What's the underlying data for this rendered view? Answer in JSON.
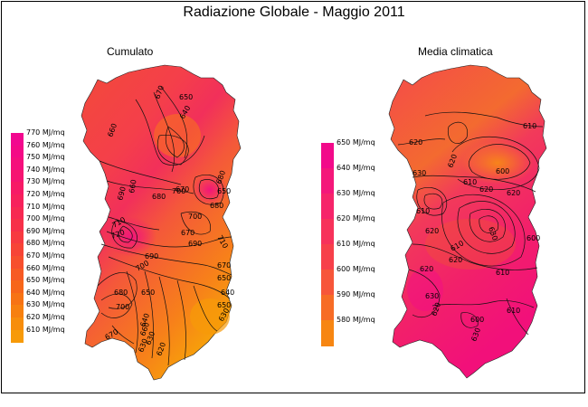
{
  "title": "Radiazione Globale - Maggio 2011",
  "left_panel": {
    "subtitle": "Cumulato",
    "legend": {
      "labels": [
        "770 MJ/mq",
        "760 MJ/mq",
        "750 MJ/mq",
        "740 MJ/mq",
        "730 MJ/mq",
        "720 MJ/mq",
        "710 MJ/mq",
        "700 MJ/mq",
        "690 MJ/mq",
        "680 MJ/mq",
        "670 MJ/mq",
        "660 MJ/mq",
        "650 MJ/mq",
        "640 MJ/mq",
        "630 MJ/mq",
        "620 MJ/mq",
        "610 MJ/mq"
      ],
      "colors": [
        "#f2088f",
        "#f40a86",
        "#f50f7c",
        "#f61471",
        "#f71a66",
        "#f7215c",
        "#f72952",
        "#f73049",
        "#f73a40",
        "#f74436",
        "#f74f2d",
        "#f75a24",
        "#f7661a",
        "#f77314",
        "#f7800f",
        "#f78d0c",
        "#f79a08"
      ]
    },
    "contour_labels": [
      "670",
      "640",
      "660",
      "650",
      "650",
      "680",
      "700",
      "710",
      "690",
      "720",
      "680",
      "700",
      "680",
      "670",
      "660",
      "670",
      "690",
      "710",
      "690",
      "700",
      "650",
      "640",
      "670",
      "650",
      "630",
      "680",
      "650",
      "700",
      "640",
      "630",
      "670",
      "620",
      "660",
      "630"
    ]
  },
  "right_panel": {
    "subtitle": "Media climatica",
    "legend": {
      "labels": [
        "650 MJ/mq",
        "640 MJ/mq",
        "630 MJ/mq",
        "620 MJ/mq",
        "610 MJ/mq",
        "600 MJ/mq",
        "590 MJ/mq",
        "580 MJ/mq"
      ],
      "colors": [
        "#f20a8a",
        "#f4177a",
        "#f6246a",
        "#f7325a",
        "#f7404a",
        "#f7563a",
        "#f76c26",
        "#f78612"
      ]
    },
    "contour_labels": [
      "610",
      "620",
      "620",
      "600",
      "610",
      "620",
      "630",
      "610",
      "620",
      "630",
      "600",
      "620",
      "630",
      "600",
      "610",
      "620",
      "630",
      "620",
      "610",
      "620",
      "610"
    ]
  }
}
